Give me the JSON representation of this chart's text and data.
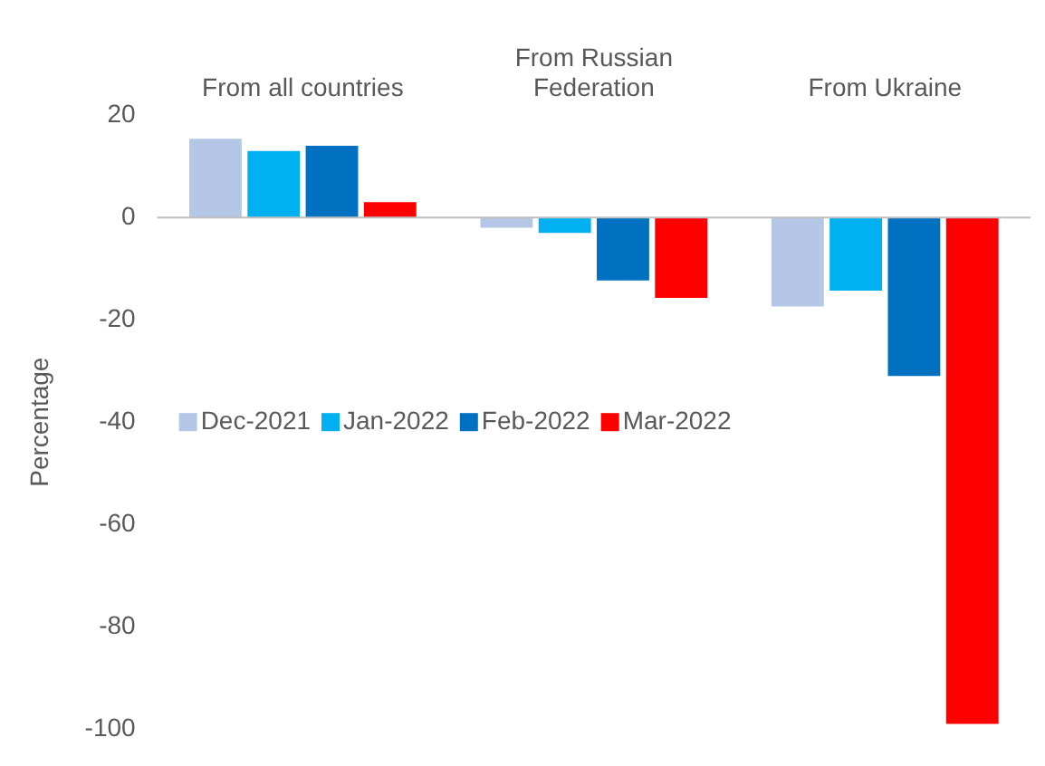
{
  "chart_data": {
    "type": "bar",
    "ylabel": "Percentage",
    "categories": [
      "From all countries",
      "From Russian Federation",
      "From Ukraine"
    ],
    "series": [
      {
        "name": "Dec-2021",
        "color": "#b4c7e7",
        "values": [
          15.4,
          -2,
          -17.4
        ]
      },
      {
        "name": "Jan-2022",
        "color": "#00b0f0",
        "values": [
          13,
          -3,
          -14.3
        ]
      },
      {
        "name": "Feb-2022",
        "color": "#0070c0",
        "values": [
          14,
          -12.3,
          -31
        ]
      },
      {
        "name": "Mar-2022",
        "color": "#ff0000",
        "values": [
          3,
          -15.7,
          -99
        ]
      }
    ],
    "ylim": [
      -100,
      20
    ],
    "yticks": [
      -100,
      -80,
      -60,
      -40,
      -20,
      0,
      20
    ],
    "grid": false,
    "legend": "left",
    "ref_lines": [
      {
        "axis": "y",
        "value": 0,
        "color": "#bfbfbf"
      }
    ]
  }
}
